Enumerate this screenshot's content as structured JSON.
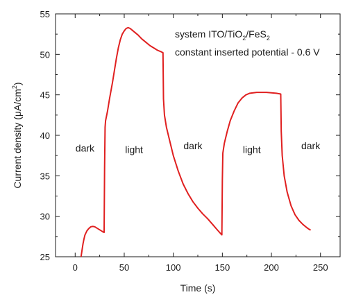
{
  "chart_data": {
    "type": "line",
    "xlabel": "Time (s)",
    "ylabel_main": "Current density (",
    "ylabel_mu": "μ",
    "ylabel_unit": "A/cm",
    "ylabel_sup": "2",
    "ylabel_close": ")",
    "xlim": [
      -20,
      270
    ],
    "ylim": [
      25,
      55
    ],
    "xticks": [
      0,
      50,
      100,
      150,
      200,
      250
    ],
    "yticks": [
      25,
      30,
      35,
      40,
      45,
      50,
      55
    ],
    "grid": false,
    "line_color": "#e02020",
    "series": [
      {
        "points": [
          [
            6,
            25.0
          ],
          [
            7,
            25.8
          ],
          [
            8,
            26.6
          ],
          [
            9,
            27.2
          ],
          [
            10,
            27.7
          ],
          [
            12,
            28.2
          ],
          [
            14,
            28.5
          ],
          [
            16,
            28.7
          ],
          [
            18,
            28.75
          ],
          [
            20,
            28.7
          ],
          [
            22,
            28.55
          ],
          [
            24,
            28.4
          ],
          [
            26,
            28.25
          ],
          [
            28,
            28.1
          ],
          [
            29.5,
            28.0
          ],
          [
            30,
            36.0
          ],
          [
            30.5,
            41.0
          ],
          [
            31,
            41.8
          ],
          [
            33,
            43.0
          ],
          [
            35,
            44.5
          ],
          [
            38,
            46.5
          ],
          [
            40,
            48.0
          ],
          [
            42,
            49.5
          ],
          [
            44,
            50.8
          ],
          [
            46,
            51.8
          ],
          [
            48,
            52.5
          ],
          [
            50,
            52.9
          ],
          [
            52,
            53.2
          ],
          [
            54,
            53.3
          ],
          [
            56,
            53.2
          ],
          [
            58,
            53.0
          ],
          [
            60,
            52.8
          ],
          [
            64,
            52.4
          ],
          [
            68,
            51.9
          ],
          [
            72,
            51.5
          ],
          [
            76,
            51.1
          ],
          [
            80,
            50.8
          ],
          [
            84,
            50.5
          ],
          [
            88,
            50.3
          ],
          [
            89.5,
            50.2
          ],
          [
            90,
            44.5
          ],
          [
            91,
            42.5
          ],
          [
            93,
            41.0
          ],
          [
            96,
            39.5
          ],
          [
            100,
            37.5
          ],
          [
            105,
            35.6
          ],
          [
            110,
            34.0
          ],
          [
            115,
            32.8
          ],
          [
            120,
            31.8
          ],
          [
            125,
            31.0
          ],
          [
            130,
            30.3
          ],
          [
            135,
            29.7
          ],
          [
            140,
            29.0
          ],
          [
            145,
            28.3
          ],
          [
            148,
            27.9
          ],
          [
            149.5,
            27.7
          ],
          [
            150,
            34.5
          ],
          [
            150.5,
            37.8
          ],
          [
            152,
            39.0
          ],
          [
            155,
            40.5
          ],
          [
            158,
            41.8
          ],
          [
            162,
            43.0
          ],
          [
            166,
            44.0
          ],
          [
            170,
            44.6
          ],
          [
            174,
            45.0
          ],
          [
            178,
            45.2
          ],
          [
            185,
            45.3
          ],
          [
            195,
            45.3
          ],
          [
            205,
            45.2
          ],
          [
            209.5,
            45.1
          ],
          [
            210,
            40.5
          ],
          [
            211,
            37.5
          ],
          [
            213,
            35.0
          ],
          [
            216,
            33.0
          ],
          [
            220,
            31.3
          ],
          [
            224,
            30.2
          ],
          [
            228,
            29.5
          ],
          [
            232,
            29.0
          ],
          [
            236,
            28.6
          ],
          [
            239,
            28.35
          ],
          [
            240,
            28.3
          ]
        ]
      }
    ],
    "legend_title_a": "system ITO/TiO",
    "legend_title_sub1": "2",
    "legend_title_b": "/FeS",
    "legend_title_sub2": "2",
    "legend_subtitle": "constant inserted potential - 0.6 V",
    "annotations": [
      {
        "text": "dark",
        "x": 10,
        "y": 38
      },
      {
        "text": "light",
        "x": 60,
        "y": 37.8
      },
      {
        "text": "dark",
        "x": 120,
        "y": 38.3
      },
      {
        "text": "light",
        "x": 180,
        "y": 37.8
      },
      {
        "text": "dark",
        "x": 240,
        "y": 38.3
      }
    ]
  }
}
